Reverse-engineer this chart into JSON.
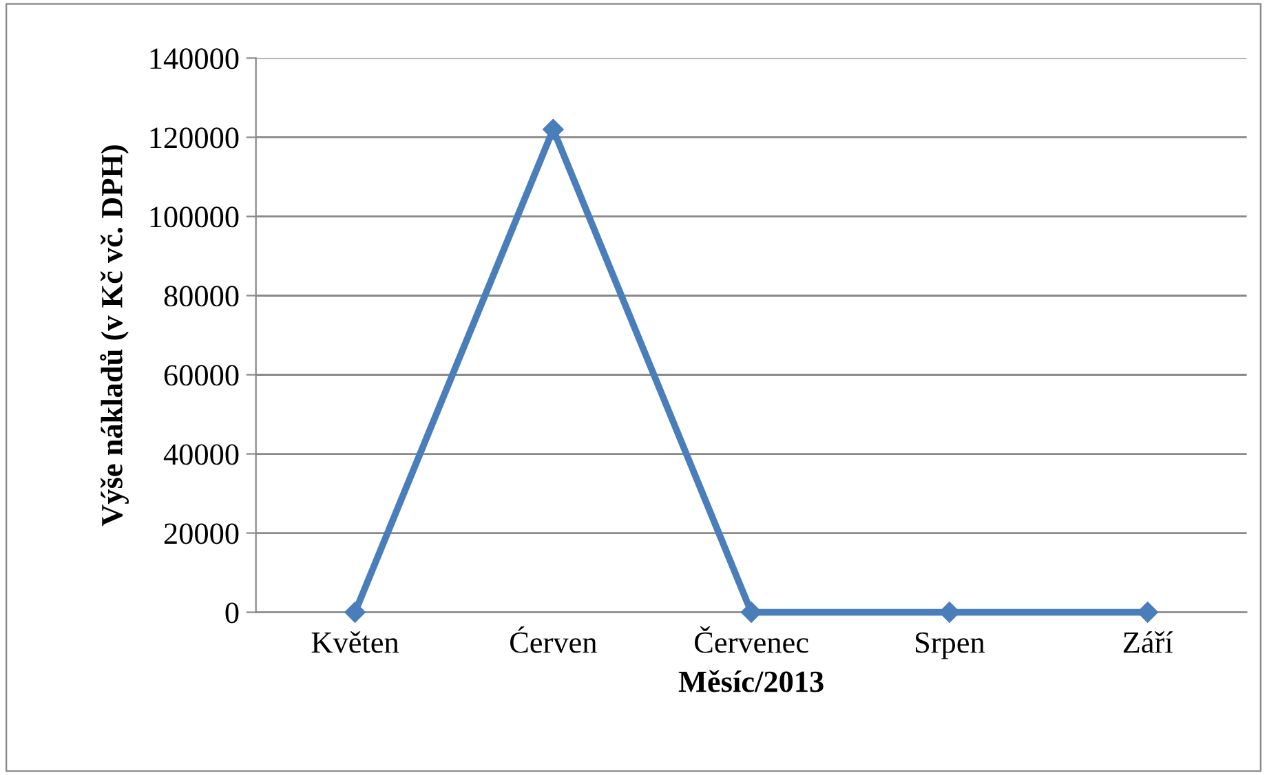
{
  "chart_data": {
    "type": "line",
    "xlabel": "Měsíc/2013",
    "ylabel": "Výše nákladů (v Kč vč. DPH)",
    "categories": [
      "Květen",
      "Ćerven",
      "Červenec",
      "Srpen",
      "Září"
    ],
    "series": [
      {
        "color": "#4a7ebb",
        "values": [
          0,
          122000,
          0,
          0,
          0
        ]
      }
    ],
    "ylim": [
      0,
      140000
    ],
    "yticks": [
      0,
      20000,
      40000,
      60000,
      80000,
      100000,
      120000,
      140000
    ],
    "grid": "y",
    "marker": "diamond",
    "line_style": "solid"
  }
}
